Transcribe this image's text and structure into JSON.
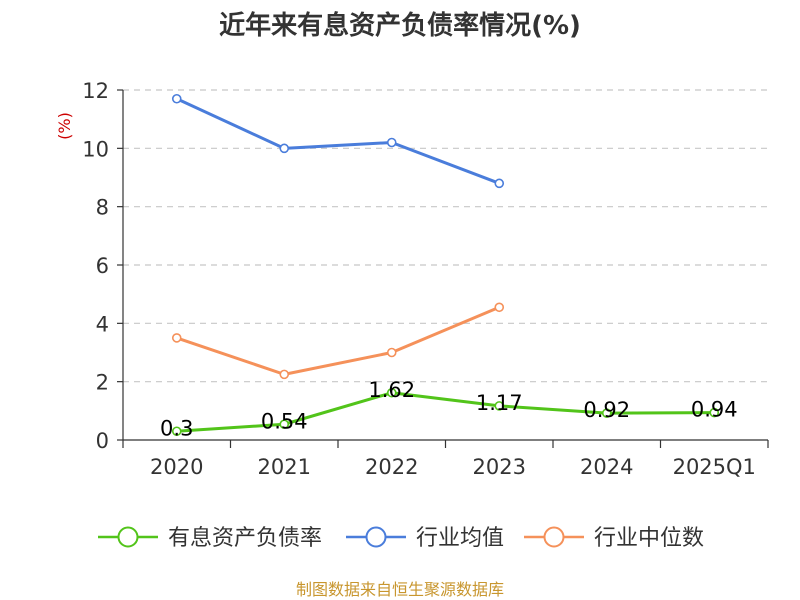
{
  "chart_data": {
    "type": "line",
    "title": "近年来有息资产负债率情况(%)",
    "unit_label": "(%)",
    "categories": [
      "2020",
      "2021",
      "2022",
      "2023",
      "2024",
      "2025Q1"
    ],
    "ylim": [
      0,
      12
    ],
    "yticks": [
      0,
      2,
      4,
      6,
      8,
      10,
      12
    ],
    "grid": true,
    "legend_position": "bottom",
    "series": [
      {
        "name": "有息资产负债率",
        "color": "#52c41a",
        "values": [
          0.3,
          0.54,
          1.62,
          1.17,
          0.92,
          0.94
        ],
        "labels": [
          "0.3",
          "0.54",
          "1.62",
          "1.17",
          "0.92",
          "0.94"
        ]
      },
      {
        "name": "行业均值",
        "color": "#4a7ddb",
        "values": [
          11.7,
          10.0,
          10.2,
          8.8,
          null,
          null
        ]
      },
      {
        "name": "行业中位数",
        "color": "#f5915a",
        "values": [
          3.5,
          2.25,
          3.0,
          4.55,
          null,
          null
        ]
      }
    ],
    "source": "制图数据来自恒生聚源数据库"
  }
}
